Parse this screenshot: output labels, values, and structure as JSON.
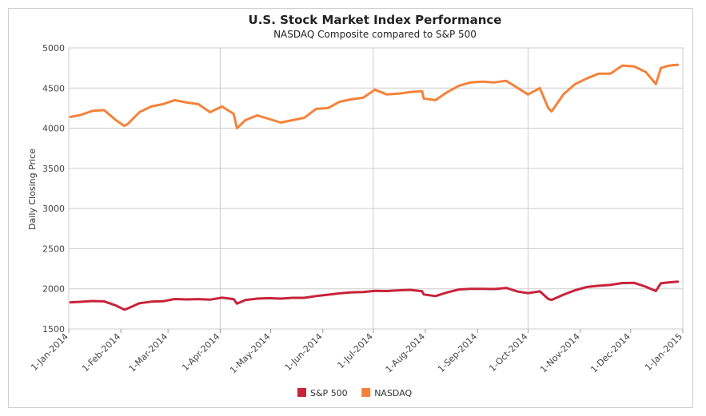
{
  "chart_data": {
    "type": "line",
    "title": "U.S. Stock Market Index Performance",
    "subtitle": "NASDAQ Composite compared to S&P 500",
    "xlabel": "",
    "ylabel": "Daily Closing Price",
    "ylim": [
      1500,
      5000
    ],
    "yticks": [
      1500,
      2000,
      2500,
      3000,
      3500,
      4000,
      4500,
      5000
    ],
    "xticks": [
      "1-Jan-2014",
      "1-Feb-2014",
      "1-Mar-2014",
      "1-Apr-2014",
      "1-May-2014",
      "1-Jun-2014",
      "1-Jul-2014",
      "1-Aug-2014",
      "1-Sep-2014",
      "1-Oct-2014",
      "1-Nov-2014",
      "1-Dec-2014",
      "1-Jan-2015"
    ],
    "xlim": [
      "2014-01-01",
      "2015-01-01"
    ],
    "grid": true,
    "legend": "bottom",
    "series": [
      {
        "name": "S&P 500",
        "color": "#c8233a",
        "x": [
          "2014-01-02",
          "2014-01-08",
          "2014-01-15",
          "2014-01-22",
          "2014-01-29",
          "2014-02-03",
          "2014-02-05",
          "2014-02-12",
          "2014-02-19",
          "2014-02-26",
          "2014-03-05",
          "2014-03-12",
          "2014-03-19",
          "2014-03-26",
          "2014-04-02",
          "2014-04-09",
          "2014-04-11",
          "2014-04-16",
          "2014-04-23",
          "2014-04-30",
          "2014-05-07",
          "2014-05-14",
          "2014-05-21",
          "2014-05-28",
          "2014-06-04",
          "2014-06-11",
          "2014-06-18",
          "2014-06-25",
          "2014-07-02",
          "2014-07-09",
          "2014-07-16",
          "2014-07-23",
          "2014-07-30",
          "2014-07-31",
          "2014-08-07",
          "2014-08-14",
          "2014-08-21",
          "2014-08-28",
          "2014-09-04",
          "2014-09-11",
          "2014-09-18",
          "2014-09-25",
          "2014-10-01",
          "2014-10-08",
          "2014-10-13",
          "2014-10-15",
          "2014-10-22",
          "2014-10-29",
          "2014-11-05",
          "2014-11-12",
          "2014-11-19",
          "2014-11-26",
          "2014-12-03",
          "2014-12-10",
          "2014-12-16",
          "2014-12-19",
          "2014-12-24",
          "2014-12-29"
        ],
        "values": [
          1832,
          1838,
          1848,
          1844,
          1792,
          1741,
          1755,
          1820,
          1840,
          1845,
          1873,
          1868,
          1872,
          1865,
          1890,
          1872,
          1815,
          1860,
          1878,
          1884,
          1878,
          1888,
          1888,
          1910,
          1927,
          1943,
          1956,
          1959,
          1975,
          1972,
          1981,
          1987,
          1970,
          1930,
          1910,
          1955,
          1992,
          2000,
          2000,
          1997,
          2011,
          1965,
          1946,
          1968,
          1874,
          1862,
          1927,
          1982,
          2023,
          2038,
          2049,
          2072,
          2075,
          2026,
          1972,
          2070,
          2081,
          2090
        ]
      },
      {
        "name": "NASDAQ",
        "color": "#f4823a",
        "x": [
          "2014-01-02",
          "2014-01-08",
          "2014-01-15",
          "2014-01-22",
          "2014-01-29",
          "2014-02-03",
          "2014-02-05",
          "2014-02-12",
          "2014-02-19",
          "2014-02-26",
          "2014-03-05",
          "2014-03-12",
          "2014-03-19",
          "2014-03-26",
          "2014-04-02",
          "2014-04-09",
          "2014-04-11",
          "2014-04-16",
          "2014-04-23",
          "2014-04-30",
          "2014-05-07",
          "2014-05-14",
          "2014-05-21",
          "2014-05-28",
          "2014-06-04",
          "2014-06-11",
          "2014-06-18",
          "2014-06-25",
          "2014-07-02",
          "2014-07-09",
          "2014-07-16",
          "2014-07-23",
          "2014-07-30",
          "2014-07-31",
          "2014-08-07",
          "2014-08-14",
          "2014-08-21",
          "2014-08-28",
          "2014-09-04",
          "2014-09-11",
          "2014-09-18",
          "2014-09-25",
          "2014-10-01",
          "2014-10-08",
          "2014-10-13",
          "2014-10-15",
          "2014-10-22",
          "2014-10-29",
          "2014-11-05",
          "2014-11-12",
          "2014-11-19",
          "2014-11-26",
          "2014-12-03",
          "2014-12-10",
          "2014-12-16",
          "2014-12-19",
          "2014-12-24",
          "2014-12-29"
        ],
        "values": [
          4140,
          4165,
          4215,
          4225,
          4100,
          4030,
          4050,
          4200,
          4270,
          4300,
          4350,
          4320,
          4300,
          4200,
          4270,
          4180,
          4000,
          4100,
          4160,
          4115,
          4070,
          4100,
          4130,
          4240,
          4250,
          4330,
          4360,
          4380,
          4480,
          4420,
          4430,
          4450,
          4460,
          4370,
          4350,
          4450,
          4530,
          4570,
          4580,
          4570,
          4590,
          4500,
          4420,
          4500,
          4250,
          4210,
          4420,
          4550,
          4620,
          4680,
          4680,
          4780,
          4770,
          4700,
          4550,
          4750,
          4780,
          4790
        ]
      }
    ]
  }
}
